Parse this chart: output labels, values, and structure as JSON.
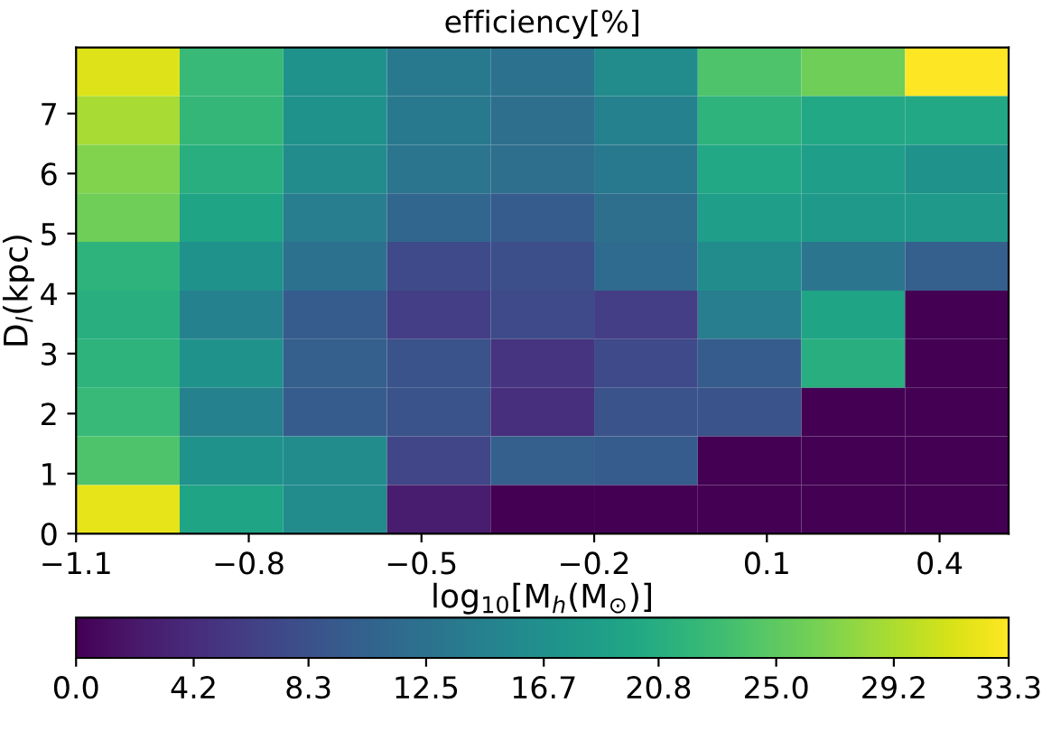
{
  "chart_data": {
    "type": "heatmap",
    "title": "efficiency[%]",
    "xlabel": "log$_{10}$[M$_{h}$(M$_{⊙}$)]",
    "ylabel": "D$_{l}$(kpc)",
    "x": [
      -1.01,
      -0.83,
      -0.65,
      -0.47,
      -0.29,
      -0.11,
      0.07,
      0.25,
      0.43
    ],
    "y": [
      7.695,
      6.885,
      6.075,
      5.265,
      4.455,
      3.645,
      2.835,
      2.025,
      1.215,
      0.405
    ],
    "xlim": [
      -1.1,
      0.52
    ],
    "ylim": [
      0,
      8.1
    ],
    "xticks": [
      {
        "value": -1.1,
        "label": "−1.1"
      },
      {
        "value": -0.8,
        "label": "−0.8"
      },
      {
        "value": -0.5,
        "label": "−0.5"
      },
      {
        "value": -0.2,
        "label": "−0.2"
      },
      0.1,
      0.4
    ],
    "yticks": [
      0,
      1,
      2,
      3,
      4,
      5,
      6,
      7
    ],
    "cells": [
      [
        31.5,
        22.5,
        17,
        13.5,
        12.5,
        16,
        24,
        26,
        33.3
      ],
      [
        29,
        22,
        17,
        13.5,
        12,
        14.5,
        21.5,
        20,
        20
      ],
      [
        27,
        21,
        16,
        13,
        12,
        13.5,
        20,
        18.5,
        17
      ],
      [
        26,
        19.5,
        14,
        11,
        9.5,
        12,
        18.5,
        18,
        18
      ],
      [
        21.5,
        17,
        12.5,
        7.5,
        8,
        11.5,
        16,
        13,
        10
      ],
      [
        21,
        14.5,
        9.5,
        6,
        7.5,
        6,
        14,
        19.5,
        0
      ],
      [
        21.5,
        17,
        10,
        8.5,
        5,
        7.5,
        9.5,
        21,
        0
      ],
      [
        22.5,
        14.5,
        9.5,
        8.5,
        4.5,
        8.5,
        8.5,
        0,
        0
      ],
      [
        24,
        17,
        16,
        7,
        10,
        9.5,
        0,
        0,
        0
      ],
      [
        32,
        19.5,
        16,
        2.5,
        0,
        0,
        0,
        0,
        0
      ]
    ],
    "clim": [
      0,
      33.3
    ],
    "cticks": [
      {
        "value": 0,
        "label": "0.0"
      },
      4.2,
      8.3,
      12.5,
      16.7,
      20.8,
      {
        "value": 25,
        "label": "25.0"
      },
      29.2,
      33.3
    ],
    "grid": false
  }
}
